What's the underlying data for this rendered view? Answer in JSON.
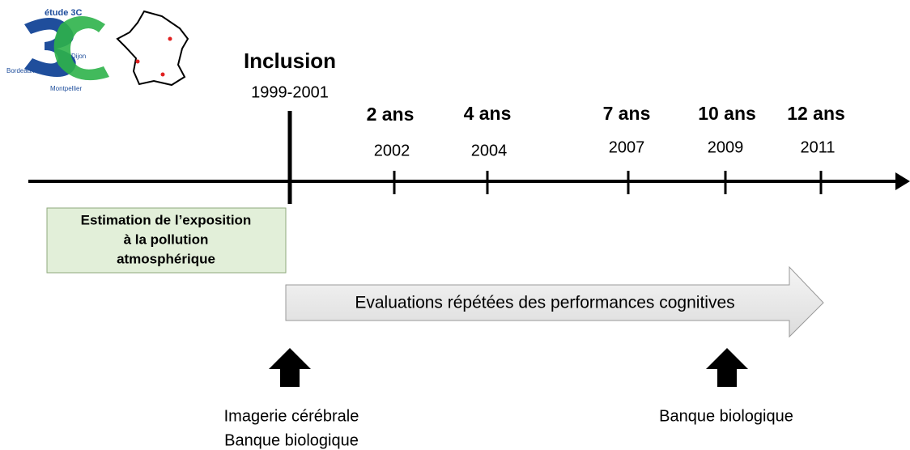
{
  "logo": {
    "title": "étude 3C",
    "cities": [
      "Dijon",
      "Bordeaux",
      "Montpellier"
    ]
  },
  "inclusion": {
    "label": "Inclusion",
    "years": "1999-2001"
  },
  "timepoints": [
    {
      "label": "2 ans",
      "year": "2002"
    },
    {
      "label": "4 ans",
      "year": "2004"
    },
    {
      "label": "7 ans",
      "year": "2007"
    },
    {
      "label": "10 ans",
      "year": "2009"
    },
    {
      "label": "12 ans",
      "year": "2011"
    }
  ],
  "exposure_box": {
    "lines": [
      "Estimation de l’exposition",
      "à la pollution",
      "atmosphérique"
    ]
  },
  "cognitive_arrow": {
    "label": "Evaluations répétées des performances cognitives"
  },
  "bottom_labels": {
    "left": [
      "Imagerie cérébrale",
      "Banque biologique"
    ],
    "right": [
      "Banque biologique"
    ]
  }
}
